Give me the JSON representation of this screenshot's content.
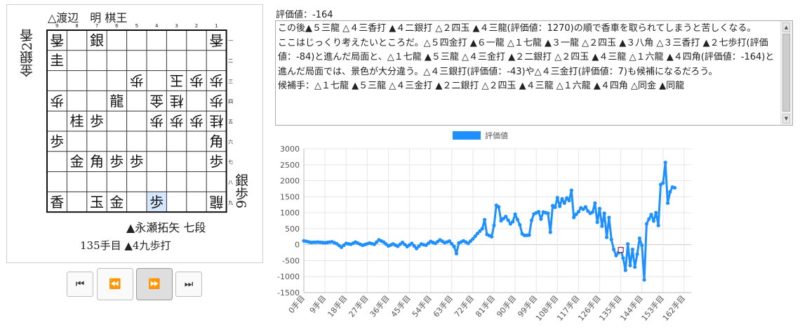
{
  "kifu": {
    "gote_player": "△渡辺　明 棋王",
    "sente_player": "▲永瀬拓矢 七段",
    "move_info": "135手目 ▲4九歩打",
    "gote_hand": "金銀2香",
    "sente_hand": "銀歩6",
    "file_numbers": [
      "9",
      "8",
      "7",
      "6",
      "5",
      "4",
      "3",
      "2",
      "1"
    ],
    "rank_numbers": [
      "一",
      "二",
      "三",
      "四",
      "五",
      "六",
      "七",
      "八",
      "九"
    ],
    "pieces": [
      {
        "file": 9,
        "rank": 1,
        "piece": "香",
        "owner": "gote"
      },
      {
        "file": 7,
        "rank": 1,
        "piece": "銀",
        "owner": "sente"
      },
      {
        "file": 1,
        "rank": 1,
        "piece": "香",
        "owner": "gote"
      },
      {
        "file": 9,
        "rank": 2,
        "piece": "圭",
        "owner": "sente"
      },
      {
        "file": 5,
        "rank": 3,
        "piece": "歩",
        "owner": "gote"
      },
      {
        "file": 3,
        "rank": 3,
        "piece": "玉",
        "owner": "gote"
      },
      {
        "file": 2,
        "rank": 3,
        "piece": "歩",
        "owner": "gote"
      },
      {
        "file": 1,
        "rank": 3,
        "piece": "歩",
        "owner": "gote"
      },
      {
        "file": 9,
        "rank": 4,
        "piece": "歩",
        "owner": "gote"
      },
      {
        "file": 6,
        "rank": 4,
        "piece": "龍",
        "owner": "sente"
      },
      {
        "file": 4,
        "rank": 4,
        "piece": "金",
        "owner": "gote"
      },
      {
        "file": 3,
        "rank": 4,
        "piece": "桂",
        "owner": "gote"
      },
      {
        "file": 1,
        "rank": 4,
        "piece": "歩",
        "owner": "gote"
      },
      {
        "file": 8,
        "rank": 5,
        "piece": "桂",
        "owner": "sente"
      },
      {
        "file": 7,
        "rank": 5,
        "piece": "歩",
        "owner": "sente"
      },
      {
        "file": 4,
        "rank": 5,
        "piece": "歩",
        "owner": "gote"
      },
      {
        "file": 3,
        "rank": 5,
        "piece": "歩",
        "owner": "gote"
      },
      {
        "file": 2,
        "rank": 5,
        "piece": "歩",
        "owner": "gote"
      },
      {
        "file": 1,
        "rank": 5,
        "piece": "桂",
        "owner": "gote"
      },
      {
        "file": 9,
        "rank": 6,
        "piece": "歩",
        "owner": "sente"
      },
      {
        "file": 1,
        "rank": 6,
        "piece": "角",
        "owner": "sente"
      },
      {
        "file": 8,
        "rank": 7,
        "piece": "金",
        "owner": "sente"
      },
      {
        "file": 7,
        "rank": 7,
        "piece": "角",
        "owner": "sente"
      },
      {
        "file": 6,
        "rank": 7,
        "piece": "歩",
        "owner": "sente"
      },
      {
        "file": 5,
        "rank": 7,
        "piece": "歩",
        "owner": "sente"
      },
      {
        "file": 1,
        "rank": 7,
        "piece": "歩",
        "owner": "sente"
      },
      {
        "file": 9,
        "rank": 9,
        "piece": "香",
        "owner": "sente"
      },
      {
        "file": 7,
        "rank": 9,
        "piece": "玉",
        "owner": "sente"
      },
      {
        "file": 6,
        "rank": 9,
        "piece": "金",
        "owner": "sente"
      },
      {
        "file": 4,
        "rank": 9,
        "piece": "歩",
        "owner": "sente"
      },
      {
        "file": 1,
        "rank": 9,
        "piece": "龍",
        "owner": "gote"
      }
    ],
    "highlight": {
      "file": 4,
      "rank": 9
    },
    "highlight_color": "#d6e8ff"
  },
  "controls": [
    {
      "name": "first-move-button",
      "icon": "skip-to-start-icon",
      "glyph": "⏮"
    },
    {
      "name": "prev-move-button",
      "icon": "rewind-icon",
      "glyph": "⏪"
    },
    {
      "name": "next-move-button",
      "icon": "fast-forward-icon",
      "glyph": "⏩"
    },
    {
      "name": "last-move-button",
      "icon": "skip-to-end-icon",
      "glyph": "⏭"
    }
  ],
  "analysis": {
    "eval_label": "評価値：-164",
    "comment_lines": [
      "この後▲５三龍 △４三香打 ▲４二銀打 △２四玉 ▲４三龍(評価値：1270)の順で香車を取られてしまうと苦しくなる。",
      "ここはじっくり考えたいところだ。△５四金打 ▲６一龍 △１七龍 ▲３一龍 △２四玉 ▲３八角 △３三香打 ▲２七歩打(評価値：-84)と進んだ局面と、△１七龍 ▲５三龍 △４三金打 ▲２二銀打 △２四玉 ▲４三龍 △１六龍 ▲４四角(評価値：-164)と進んだ局面では、景色が大分違う。△４三銀打(評価値：-43)や△４三金打(評価値：7)も候補になるだろう。",
      "候補手：△１七龍 ▲５三龍 △４三金打 ▲２二銀打 △２四玉 ▲４三龍 △１六龍 ▲４四角 △同金 ▲同龍"
    ]
  },
  "chart_data": {
    "type": "line",
    "series": [
      {
        "name": "評価値",
        "color": "#1e90ff"
      }
    ],
    "ylim": [
      -1500,
      3000
    ],
    "yticks": [
      3000,
      2500,
      2000,
      1500,
      1000,
      500,
      0,
      -500,
      -1000,
      -1500
    ],
    "xlim": [
      0,
      165
    ],
    "xticks": [
      "0手目",
      "9手目",
      "18手目",
      "27手目",
      "36手目",
      "45手目",
      "54手目",
      "63手目",
      "72手目",
      "81手目",
      "90手目",
      "99手目",
      "108手目",
      "117手目",
      "126手目",
      "135手目",
      "144手目",
      "153手目",
      "162手目"
    ],
    "current_move": 135,
    "current_value": -164,
    "keypoints": [
      [
        0,
        120
      ],
      [
        3,
        70
      ],
      [
        6,
        80
      ],
      [
        9,
        60
      ],
      [
        12,
        90
      ],
      [
        14,
        30
      ],
      [
        16,
        -80
      ],
      [
        18,
        40
      ],
      [
        20,
        10
      ],
      [
        22,
        80
      ],
      [
        25,
        -20
      ],
      [
        28,
        50
      ],
      [
        30,
        10
      ],
      [
        32,
        150
      ],
      [
        34,
        80
      ],
      [
        36,
        -40
      ],
      [
        38,
        20
      ],
      [
        40,
        -50
      ],
      [
        42,
        70
      ],
      [
        44,
        -60
      ],
      [
        46,
        40
      ],
      [
        48,
        -120
      ],
      [
        50,
        20
      ],
      [
        52,
        -20
      ],
      [
        54,
        100
      ],
      [
        56,
        40
      ],
      [
        58,
        150
      ],
      [
        60,
        60
      ],
      [
        62,
        110
      ],
      [
        64,
        -60
      ],
      [
        65,
        -280
      ],
      [
        66,
        50
      ],
      [
        68,
        120
      ],
      [
        70,
        40
      ],
      [
        72,
        180
      ],
      [
        74,
        350
      ],
      [
        76,
        500
      ],
      [
        77,
        780
      ],
      [
        78,
        320
      ],
      [
        80,
        250
      ],
      [
        81,
        600
      ],
      [
        82,
        1230
      ],
      [
        83,
        1180
      ],
      [
        84,
        750
      ],
      [
        86,
        880
      ],
      [
        88,
        650
      ],
      [
        89,
        720
      ],
      [
        90,
        950
      ],
      [
        92,
        620
      ],
      [
        93,
        340
      ],
      [
        94,
        290
      ],
      [
        96,
        300
      ],
      [
        97,
        760
      ],
      [
        98,
        960
      ],
      [
        100,
        1030
      ],
      [
        101,
        800
      ],
      [
        102,
        1020
      ],
      [
        104,
        980
      ],
      [
        105,
        390
      ],
      [
        106,
        1220
      ],
      [
        107,
        1170
      ],
      [
        108,
        1470
      ],
      [
        109,
        1200
      ],
      [
        110,
        1430
      ],
      [
        111,
        1300
      ],
      [
        112,
        1460
      ],
      [
        113,
        1380
      ],
      [
        114,
        1700
      ],
      [
        115,
        850
      ],
      [
        116,
        950
      ],
      [
        117,
        1030
      ],
      [
        118,
        1150
      ],
      [
        119,
        1110
      ],
      [
        120,
        1180
      ],
      [
        121,
        1050
      ],
      [
        122,
        980
      ],
      [
        123,
        1020
      ],
      [
        124,
        1300
      ],
      [
        125,
        700
      ],
      [
        126,
        1130
      ],
      [
        127,
        580
      ],
      [
        128,
        980
      ],
      [
        129,
        230
      ],
      [
        130,
        850
      ],
      [
        131,
        160
      ],
      [
        132,
        -150
      ],
      [
        133,
        -340
      ],
      [
        135,
        -164
      ],
      [
        136,
        -420
      ],
      [
        137,
        -800
      ],
      [
        138,
        20
      ],
      [
        139,
        -650
      ],
      [
        140,
        -150
      ],
      [
        141,
        -700
      ],
      [
        142,
        -300
      ],
      [
        143,
        200
      ],
      [
        144,
        -20
      ],
      [
        145,
        -1100
      ],
      [
        146,
        650
      ],
      [
        147,
        800
      ],
      [
        148,
        940
      ],
      [
        149,
        740
      ],
      [
        150,
        1000
      ],
      [
        151,
        600
      ],
      [
        152,
        1880
      ],
      [
        153,
        1930
      ],
      [
        154,
        2570
      ],
      [
        155,
        1300
      ],
      [
        156,
        1650
      ],
      [
        157,
        1800
      ],
      [
        158,
        1780
      ]
    ]
  }
}
